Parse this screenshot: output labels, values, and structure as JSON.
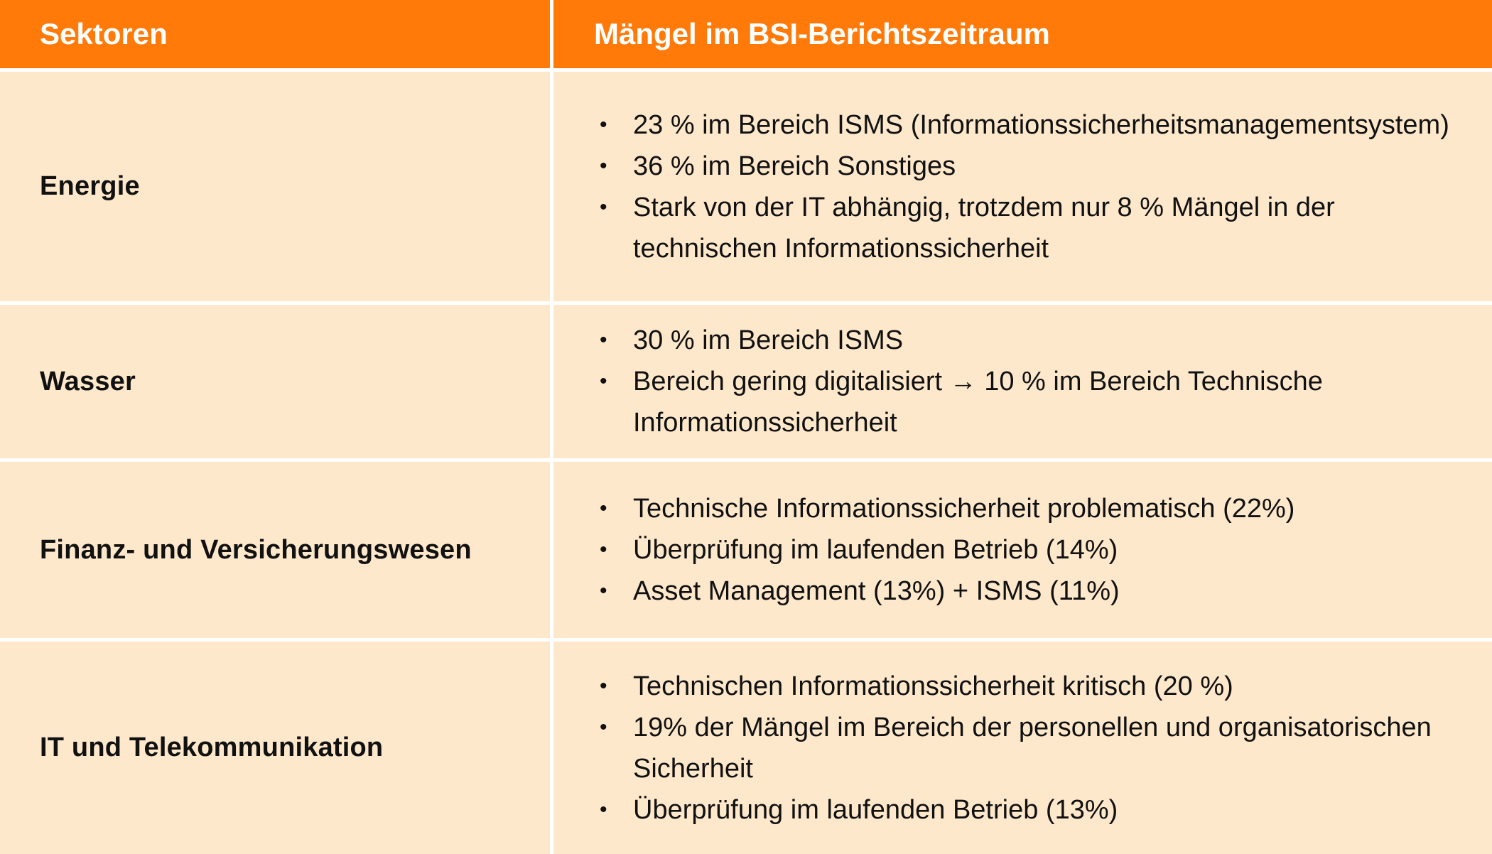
{
  "header": {
    "col1": "Sektoren",
    "col2": "Mängel im BSI-Berichtszeitraum"
  },
  "rows": [
    {
      "sector": "Energie",
      "items": [
        "23 % im Bereich ISMS (Informationssicherheitsmanagementsystem)",
        "36 % im Bereich Sonstiges",
        "Stark von der IT abhängig, trotzdem nur 8 % Mängel in der technischen Informationssicherheit"
      ]
    },
    {
      "sector": "Wasser",
      "items": [
        "30 % im Bereich ISMS",
        "Bereich gering digitalisiert → 10 % im Bereich Technische Informationssicherheit"
      ]
    },
    {
      "sector": "Finanz- und Versicherungswesen",
      "items": [
        "Technische Informationssicherheit problematisch (22%)",
        "Überprüfung im laufenden Betrieb (14%)",
        "Asset Management (13%) + ISMS (11%)"
      ]
    },
    {
      "sector": "IT und Telekommunikation",
      "items": [
        "Technischen Informationssicherheit kritisch (20 %)",
        "19% der  Mängel im Bereich der personellen und organisatorischen Sicherheit",
        "Überprüfung im laufenden Betrieb (13%)"
      ]
    }
  ],
  "colors": {
    "header_bg": "#ff7a09",
    "row_bg": "#fde8cc",
    "divider": "#ffffff"
  }
}
